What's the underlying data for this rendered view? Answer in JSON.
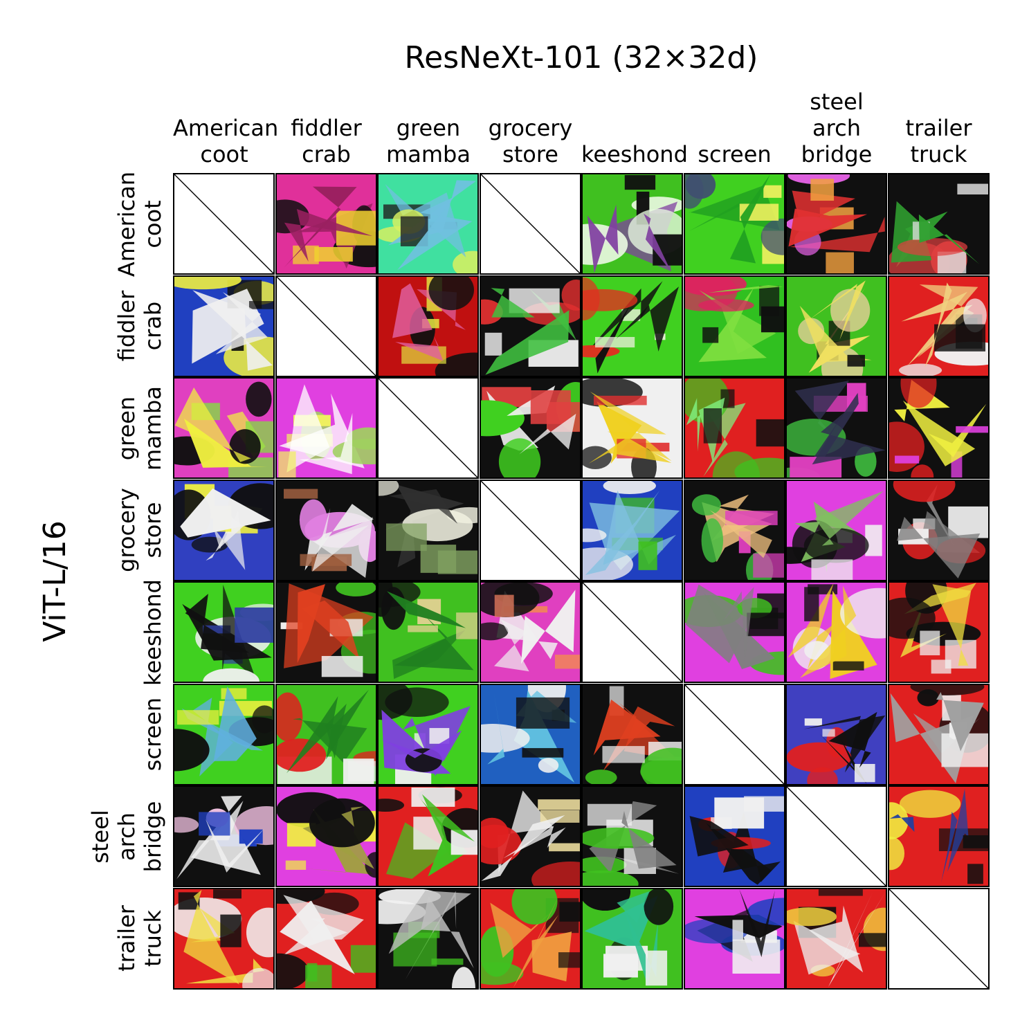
{
  "title": "ResNeXt-101 (32×32d)",
  "ylabel": "ViT-L/16",
  "columns": [
    [
      "American",
      "coot"
    ],
    [
      "fiddler",
      "crab"
    ],
    [
      "green",
      "mamba"
    ],
    [
      "grocery",
      "store"
    ],
    [
      "keeshond"
    ],
    [
      "screen"
    ],
    [
      "steel",
      "arch",
      "bridge"
    ],
    [
      "trailer",
      "truck"
    ]
  ],
  "rows": [
    [
      "American",
      "coot"
    ],
    [
      "fiddler",
      "crab"
    ],
    [
      "green",
      "mamba"
    ],
    [
      "grocery",
      "store"
    ],
    [
      "keeshond"
    ],
    [
      "screen"
    ],
    [
      "steel",
      "arch",
      "bridge"
    ],
    [
      "trailer",
      "truck"
    ]
  ],
  "empty_cells": [
    [
      0,
      0
    ],
    [
      0,
      3
    ],
    [
      1,
      1
    ],
    [
      2,
      2
    ],
    [
      3,
      3
    ],
    [
      4,
      4
    ],
    [
      5,
      5
    ],
    [
      6,
      6
    ],
    [
      7,
      7
    ]
  ],
  "cell_palettes": [
    [
      [
        "#ffffff"
      ],
      [
        "#e0309a",
        "#101010",
        "#f0d030",
        "#9a2060"
      ],
      [
        "#40e0a0",
        "#d8f060",
        "#202020",
        "#70c0e0"
      ],
      [
        "#ffffff"
      ],
      [
        "#40c020",
        "#e8f8e0",
        "#101010",
        "#8040a0"
      ],
      [
        "#40d020",
        "#405070",
        "#f0f060",
        "#20a020"
      ],
      [
        "#101010",
        "#e060e0",
        "#f0a040",
        "#e03030"
      ],
      [
        "#101010",
        "#e04040",
        "#e0e0e0",
        "#30a030"
      ]
    ],
    [
      [
        "#2040c0",
        "#f0f040",
        "#101010",
        "#f0f0f0"
      ],
      [
        "#ffffff"
      ],
      [
        "#c01010",
        "#101010",
        "#e0e040",
        "#e060a0"
      ],
      [
        "#101010",
        "#e03030",
        "#f0f0f0",
        "#40c040"
      ],
      [
        "#40d020",
        "#e03020",
        "#f0f0e0",
        "#101010"
      ],
      [
        "#30c020",
        "#e02060",
        "#101010",
        "#80e040"
      ],
      [
        "#40c020",
        "#f0d0a0",
        "#101010",
        "#f0e060"
      ],
      [
        "#e02020",
        "#f0f0f0",
        "#101010",
        "#f0d080"
      ]
    ],
    [
      [
        "#e040c0",
        "#101010",
        "#80e040",
        "#f0f040"
      ],
      [
        "#e040e0",
        "#a0d060",
        "#f0f060",
        "#ffffff"
      ],
      [
        "#ffffff"
      ],
      [
        "#101010",
        "#40d020",
        "#e04040",
        "#f0f0f0"
      ],
      [
        "#f0f0f0",
        "#101010",
        "#e03030",
        "#f0d020"
      ],
      [
        "#e02020",
        "#40c020",
        "#101010",
        "#80f080"
      ],
      [
        "#101010",
        "#40c040",
        "#e040c0",
        "#303050"
      ],
      [
        "#101010",
        "#e02020",
        "#e040e0",
        "#f0f040"
      ]
    ],
    [
      [
        "#3040c0",
        "#101010",
        "#f0f040",
        "#f0f0f0"
      ],
      [
        "#101010",
        "#e080e0",
        "#a06040",
        "#f0f0f0"
      ],
      [
        "#101010",
        "#f0f0e0",
        "#80a060",
        "#303030"
      ],
      [
        "#ffffff"
      ],
      [
        "#2040c0",
        "#f0f0f0",
        "#40c020",
        "#80c0e0"
      ],
      [
        "#101010",
        "#40c040",
        "#e040c0",
        "#f0c080"
      ],
      [
        "#e040e0",
        "#101010",
        "#f0f0f0",
        "#80c060"
      ],
      [
        "#101010",
        "#e02020",
        "#f0f0f0",
        "#808080"
      ]
    ],
    [
      [
        "#40d020",
        "#f0f0f0",
        "#3040a0",
        "#101010"
      ],
      [
        "#101010",
        "#40c020",
        "#f0f0f0",
        "#e04020"
      ],
      [
        "#40c020",
        "#101010",
        "#e0d090",
        "#208020"
      ],
      [
        "#e040c0",
        "#101010",
        "#f08060",
        "#f0f0f0"
      ],
      [
        "#ffffff"
      ],
      [
        "#e040e0",
        "#40c020",
        "#101010",
        "#808080"
      ],
      [
        "#e040e0",
        "#f0f0f0",
        "#101010",
        "#f0d020"
      ],
      [
        "#e02020",
        "#101010",
        "#f0f0f0",
        "#f0e040"
      ]
    ],
    [
      [
        "#40d020",
        "#101010",
        "#f0f040",
        "#60b0e0"
      ],
      [
        "#40c020",
        "#e02020",
        "#f0f0f0",
        "#208020"
      ],
      [
        "#40d020",
        "#101010",
        "#f0f0f0",
        "#8040e0"
      ],
      [
        "#2060c0",
        "#f0f0f0",
        "#101010",
        "#60c0e0"
      ],
      [
        "#101010",
        "#40c020",
        "#f0f0f0",
        "#e04020"
      ],
      [
        "#ffffff"
      ],
      [
        "#4040c0",
        "#e02020",
        "#f0f0f0",
        "#101010"
      ],
      [
        "#e02020",
        "#101010",
        "#f0f0f0",
        "#a0a0a0"
      ]
    ],
    [
      [
        "#101010",
        "#f0c0e0",
        "#2040c0",
        "#f0f0f0"
      ],
      [
        "#e040e0",
        "#101010",
        "#f0f040",
        "#a0a040"
      ],
      [
        "#e02020",
        "#101010",
        "#f0f0f0",
        "#40c020"
      ],
      [
        "#101010",
        "#e02020",
        "#f0e0a0",
        "#f0f0f0"
      ],
      [
        "#101010",
        "#40c020",
        "#f0f0f0",
        "#808080"
      ],
      [
        "#2040c0",
        "#e02020",
        "#f0f0f0",
        "#101010"
      ],
      [
        "#ffffff"
      ],
      [
        "#e02020",
        "#f0f040",
        "#101010",
        "#2040a0"
      ]
    ],
    [
      [
        "#e02020",
        "#f0f0f0",
        "#101010",
        "#f0e040"
      ],
      [
        "#e02020",
        "#101010",
        "#40c020",
        "#f0f0f0"
      ],
      [
        "#101010",
        "#f0f0f0",
        "#40c020",
        "#c0c0c0"
      ],
      [
        "#e02020",
        "#40c020",
        "#101010",
        "#f0a040"
      ],
      [
        "#40c020",
        "#101010",
        "#f0f0f0",
        "#30c090"
      ],
      [
        "#e040e0",
        "#2040c0",
        "#f0f0f0",
        "#101010"
      ],
      [
        "#e02020",
        "#f0d040",
        "#101010",
        "#f0f0f0"
      ],
      [
        "#ffffff"
      ]
    ]
  ]
}
